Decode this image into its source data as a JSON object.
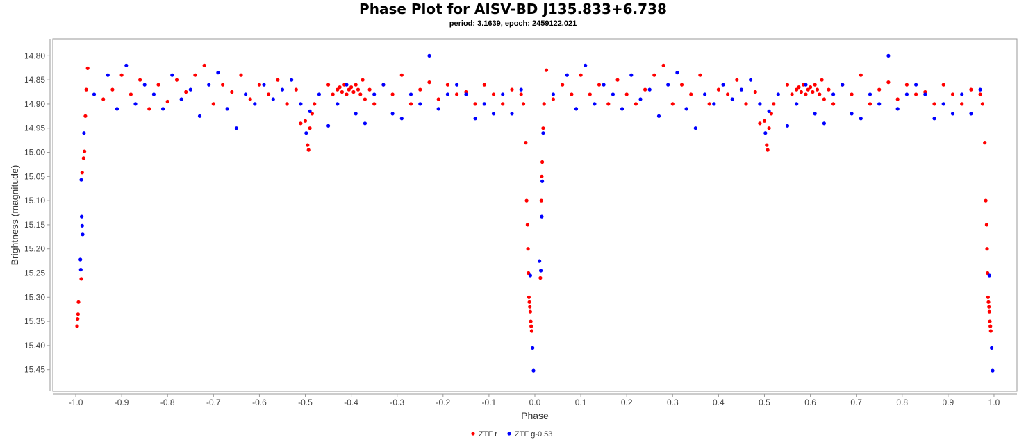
{
  "chart_data": {
    "type": "scatter",
    "title": "Phase Plot for AISV-BD J135.833+6.738",
    "subtitle": "period: 3.1639, epoch: 2459122.021",
    "xlabel": "Phase",
    "ylabel": "Brightness (magnitude)",
    "xlim": [
      -1.05,
      1.05
    ],
    "ylim": [
      15.495,
      14.765
    ],
    "y_inverted": true,
    "x_ticks": [
      "-1.0",
      "-0.9",
      "-0.8",
      "-0.7",
      "-0.6",
      "-0.5",
      "-0.4",
      "-0.3",
      "-0.2",
      "-0.1",
      "0.0",
      "0.1",
      "0.2",
      "0.3",
      "0.4",
      "0.5",
      "0.6",
      "0.7",
      "0.8",
      "0.9",
      "1.0"
    ],
    "y_ticks": [
      "14.80",
      "14.85",
      "14.90",
      "14.95",
      "15.00",
      "15.05",
      "15.10",
      "15.15",
      "15.20",
      "15.25",
      "15.30",
      "15.35",
      "15.40",
      "15.45"
    ],
    "grid": false,
    "legend_position": "bottom-center",
    "series": [
      {
        "name": "ZTF r",
        "color": "#ff0000",
        "points": [
          [
            -0.997,
            15.36
          ],
          [
            -0.996,
            15.345
          ],
          [
            -0.995,
            15.335
          ],
          [
            -0.994,
            15.31
          ],
          [
            -0.988,
            15.262
          ],
          [
            -0.986,
            15.042
          ],
          [
            -0.983,
            15.012
          ],
          [
            -0.981,
            14.998
          ],
          [
            -0.979,
            14.925
          ],
          [
            -0.977,
            14.87
          ],
          [
            -0.974,
            14.826
          ],
          [
            -0.94,
            14.89
          ],
          [
            -0.92,
            14.87
          ],
          [
            -0.9,
            14.84
          ],
          [
            -0.88,
            14.88
          ],
          [
            -0.86,
            14.85
          ],
          [
            -0.84,
            14.91
          ],
          [
            -0.82,
            14.86
          ],
          [
            -0.8,
            14.895
          ],
          [
            -0.78,
            14.85
          ],
          [
            -0.76,
            14.875
          ],
          [
            -0.74,
            14.84
          ],
          [
            -0.72,
            14.82
          ],
          [
            -0.7,
            14.9
          ],
          [
            -0.68,
            14.86
          ],
          [
            -0.66,
            14.875
          ],
          [
            -0.64,
            14.84
          ],
          [
            -0.62,
            14.89
          ],
          [
            -0.6,
            14.86
          ],
          [
            -0.58,
            14.88
          ],
          [
            -0.56,
            14.85
          ],
          [
            -0.54,
            14.9
          ],
          [
            -0.52,
            14.87
          ],
          [
            -0.51,
            14.94
          ],
          [
            -0.5,
            14.935
          ],
          [
            -0.495,
            14.985
          ],
          [
            -0.493,
            14.995
          ],
          [
            -0.49,
            14.95
          ],
          [
            -0.485,
            14.92
          ],
          [
            -0.48,
            14.9
          ],
          [
            -0.45,
            14.86
          ],
          [
            -0.44,
            14.88
          ],
          [
            -0.43,
            14.87
          ],
          [
            -0.425,
            14.865
          ],
          [
            -0.42,
            14.875
          ],
          [
            -0.415,
            14.86
          ],
          [
            -0.41,
            14.88
          ],
          [
            -0.405,
            14.87
          ],
          [
            -0.4,
            14.865
          ],
          [
            -0.395,
            14.875
          ],
          [
            -0.39,
            14.86
          ],
          [
            -0.385,
            14.87
          ],
          [
            -0.38,
            14.88
          ],
          [
            -0.375,
            14.85
          ],
          [
            -0.37,
            14.89
          ],
          [
            -0.36,
            14.87
          ],
          [
            -0.35,
            14.9
          ],
          [
            -0.33,
            14.86
          ],
          [
            -0.31,
            14.88
          ],
          [
            -0.29,
            14.84
          ],
          [
            -0.27,
            14.9
          ],
          [
            -0.25,
            14.87
          ],
          [
            -0.23,
            14.855
          ],
          [
            -0.21,
            14.89
          ],
          [
            -0.19,
            14.86
          ],
          [
            -0.17,
            14.88
          ],
          [
            -0.15,
            14.875
          ],
          [
            -0.13,
            14.9
          ],
          [
            -0.11,
            14.86
          ],
          [
            -0.09,
            14.88
          ],
          [
            -0.07,
            14.9
          ],
          [
            -0.05,
            14.87
          ],
          [
            -0.03,
            14.88
          ],
          [
            -0.025,
            14.9
          ],
          [
            -0.02,
            14.98
          ],
          [
            -0.018,
            15.1
          ],
          [
            -0.016,
            15.15
          ],
          [
            -0.015,
            15.2
          ],
          [
            -0.014,
            15.25
          ],
          [
            -0.013,
            15.3
          ],
          [
            -0.012,
            15.31
          ],
          [
            -0.011,
            15.32
          ],
          [
            -0.01,
            15.33
          ],
          [
            -0.009,
            15.35
          ],
          [
            -0.008,
            15.36
          ],
          [
            -0.007,
            15.37
          ],
          [
            0.012,
            15.26
          ],
          [
            0.014,
            15.1
          ],
          [
            0.015,
            15.05
          ],
          [
            0.016,
            15.02
          ],
          [
            0.018,
            14.95
          ],
          [
            0.02,
            14.9
          ],
          [
            0.025,
            14.83
          ],
          [
            0.04,
            14.89
          ],
          [
            0.06,
            14.86
          ],
          [
            0.08,
            14.88
          ],
          [
            0.1,
            14.84
          ],
          [
            0.12,
            14.88
          ],
          [
            0.14,
            14.86
          ],
          [
            0.16,
            14.9
          ],
          [
            0.18,
            14.85
          ],
          [
            0.2,
            14.88
          ],
          [
            0.22,
            14.9
          ],
          [
            0.24,
            14.87
          ],
          [
            0.26,
            14.84
          ],
          [
            0.28,
            14.82
          ],
          [
            0.3,
            14.9
          ],
          [
            0.32,
            14.86
          ],
          [
            0.34,
            14.88
          ],
          [
            0.36,
            14.84
          ],
          [
            0.38,
            14.9
          ],
          [
            0.4,
            14.87
          ],
          [
            0.42,
            14.88
          ],
          [
            0.44,
            14.85
          ],
          [
            0.46,
            14.9
          ],
          [
            0.48,
            14.875
          ],
          [
            0.49,
            14.94
          ],
          [
            0.5,
            14.935
          ],
          [
            0.505,
            14.985
          ],
          [
            0.507,
            14.995
          ],
          [
            0.51,
            14.95
          ],
          [
            0.515,
            14.92
          ],
          [
            0.52,
            14.9
          ],
          [
            0.55,
            14.86
          ],
          [
            0.56,
            14.88
          ],
          [
            0.57,
            14.87
          ],
          [
            0.575,
            14.865
          ],
          [
            0.58,
            14.875
          ],
          [
            0.585,
            14.86
          ],
          [
            0.59,
            14.88
          ],
          [
            0.595,
            14.87
          ],
          [
            0.6,
            14.865
          ],
          [
            0.605,
            14.875
          ],
          [
            0.61,
            14.86
          ],
          [
            0.615,
            14.87
          ],
          [
            0.62,
            14.88
          ],
          [
            0.625,
            14.85
          ],
          [
            0.63,
            14.89
          ],
          [
            0.64,
            14.87
          ],
          [
            0.65,
            14.9
          ],
          [
            0.67,
            14.86
          ],
          [
            0.69,
            14.88
          ],
          [
            0.71,
            14.84
          ],
          [
            0.73,
            14.9
          ],
          [
            0.75,
            14.87
          ],
          [
            0.77,
            14.855
          ],
          [
            0.79,
            14.89
          ],
          [
            0.81,
            14.86
          ],
          [
            0.83,
            14.88
          ],
          [
            0.85,
            14.875
          ],
          [
            0.87,
            14.9
          ],
          [
            0.89,
            14.86
          ],
          [
            0.91,
            14.88
          ],
          [
            0.93,
            14.9
          ],
          [
            0.95,
            14.87
          ],
          [
            0.97,
            14.88
          ],
          [
            0.975,
            14.9
          ],
          [
            0.98,
            14.98
          ],
          [
            0.982,
            15.1
          ],
          [
            0.984,
            15.15
          ],
          [
            0.985,
            15.2
          ],
          [
            0.986,
            15.25
          ],
          [
            0.987,
            15.3
          ],
          [
            0.988,
            15.31
          ],
          [
            0.989,
            15.32
          ],
          [
            0.99,
            15.33
          ],
          [
            0.991,
            15.35
          ],
          [
            0.992,
            15.36
          ],
          [
            0.993,
            15.37
          ]
        ]
      },
      {
        "name": "ZTF g-0.53",
        "color": "#0000ff",
        "points": [
          [
            -0.99,
            15.222
          ],
          [
            -0.989,
            15.243
          ],
          [
            -0.988,
            15.057
          ],
          [
            -0.987,
            15.133
          ],
          [
            -0.986,
            15.152
          ],
          [
            -0.985,
            15.17
          ],
          [
            -0.982,
            14.96
          ],
          [
            -0.96,
            14.88
          ],
          [
            -0.93,
            14.84
          ],
          [
            -0.91,
            14.91
          ],
          [
            -0.89,
            14.82
          ],
          [
            -0.87,
            14.9
          ],
          [
            -0.85,
            14.86
          ],
          [
            -0.83,
            14.88
          ],
          [
            -0.81,
            14.91
          ],
          [
            -0.79,
            14.84
          ],
          [
            -0.77,
            14.89
          ],
          [
            -0.75,
            14.87
          ],
          [
            -0.73,
            14.925
          ],
          [
            -0.71,
            14.86
          ],
          [
            -0.69,
            14.835
          ],
          [
            -0.67,
            14.91
          ],
          [
            -0.65,
            14.95
          ],
          [
            -0.63,
            14.88
          ],
          [
            -0.61,
            14.9
          ],
          [
            -0.59,
            14.86
          ],
          [
            -0.57,
            14.89
          ],
          [
            -0.55,
            14.87
          ],
          [
            -0.53,
            14.85
          ],
          [
            -0.51,
            14.9
          ],
          [
            -0.498,
            14.96
          ],
          [
            -0.49,
            14.915
          ],
          [
            -0.47,
            14.88
          ],
          [
            -0.45,
            14.945
          ],
          [
            -0.43,
            14.9
          ],
          [
            -0.41,
            14.86
          ],
          [
            -0.39,
            14.92
          ],
          [
            -0.37,
            14.94
          ],
          [
            -0.35,
            14.88
          ],
          [
            -0.33,
            14.86
          ],
          [
            -0.31,
            14.92
          ],
          [
            -0.29,
            14.93
          ],
          [
            -0.27,
            14.88
          ],
          [
            -0.25,
            14.9
          ],
          [
            -0.23,
            14.8
          ],
          [
            -0.21,
            14.91
          ],
          [
            -0.19,
            14.88
          ],
          [
            -0.17,
            14.86
          ],
          [
            -0.15,
            14.88
          ],
          [
            -0.13,
            14.93
          ],
          [
            -0.11,
            14.9
          ],
          [
            -0.09,
            14.92
          ],
          [
            -0.07,
            14.88
          ],
          [
            -0.05,
            14.92
          ],
          [
            -0.03,
            14.87
          ],
          [
            -0.01,
            15.255
          ],
          [
            -0.005,
            15.405
          ],
          [
            -0.003,
            15.452
          ],
          [
            0.01,
            15.225
          ],
          [
            0.013,
            15.245
          ],
          [
            0.015,
            15.133
          ],
          [
            0.016,
            15.06
          ],
          [
            0.018,
            14.96
          ],
          [
            0.04,
            14.88
          ],
          [
            0.07,
            14.84
          ],
          [
            0.09,
            14.91
          ],
          [
            0.11,
            14.82
          ],
          [
            0.13,
            14.9
          ],
          [
            0.15,
            14.86
          ],
          [
            0.17,
            14.88
          ],
          [
            0.19,
            14.91
          ],
          [
            0.21,
            14.84
          ],
          [
            0.23,
            14.89
          ],
          [
            0.25,
            14.87
          ],
          [
            0.27,
            14.925
          ],
          [
            0.29,
            14.86
          ],
          [
            0.31,
            14.835
          ],
          [
            0.33,
            14.91
          ],
          [
            0.35,
            14.95
          ],
          [
            0.37,
            14.88
          ],
          [
            0.39,
            14.9
          ],
          [
            0.41,
            14.86
          ],
          [
            0.43,
            14.89
          ],
          [
            0.45,
            14.87
          ],
          [
            0.47,
            14.85
          ],
          [
            0.49,
            14.9
          ],
          [
            0.502,
            14.96
          ],
          [
            0.51,
            14.915
          ],
          [
            0.53,
            14.88
          ],
          [
            0.55,
            14.945
          ],
          [
            0.57,
            14.9
          ],
          [
            0.59,
            14.86
          ],
          [
            0.61,
            14.92
          ],
          [
            0.63,
            14.94
          ],
          [
            0.65,
            14.88
          ],
          [
            0.67,
            14.86
          ],
          [
            0.69,
            14.92
          ],
          [
            0.71,
            14.93
          ],
          [
            0.73,
            14.88
          ],
          [
            0.75,
            14.9
          ],
          [
            0.77,
            14.8
          ],
          [
            0.79,
            14.91
          ],
          [
            0.81,
            14.88
          ],
          [
            0.83,
            14.86
          ],
          [
            0.85,
            14.88
          ],
          [
            0.87,
            14.93
          ],
          [
            0.89,
            14.9
          ],
          [
            0.91,
            14.92
          ],
          [
            0.93,
            14.88
          ],
          [
            0.95,
            14.92
          ],
          [
            0.97,
            14.87
          ],
          [
            0.99,
            15.255
          ],
          [
            0.995,
            15.405
          ],
          [
            0.997,
            15.452
          ]
        ]
      }
    ]
  }
}
